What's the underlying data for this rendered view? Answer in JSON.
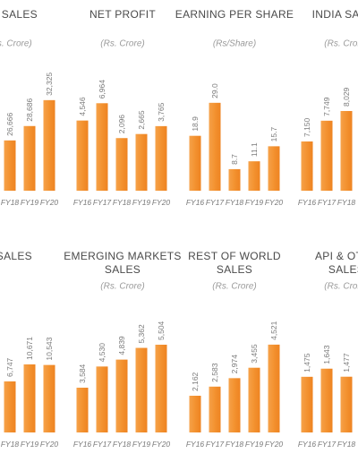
{
  "chart_data": [
    {
      "type": "bar",
      "title": [
        "SALES"
      ],
      "subtitle": "(Rs. Crore)",
      "categories": [
        "FY18",
        "FY19",
        "FY20"
      ],
      "values": [
        26666,
        28686,
        32325
      ],
      "value_labels": [
        "26,666",
        "28,686",
        "32,325"
      ],
      "ylim": [
        19600,
        32180
      ],
      "color": "#f39230"
    },
    {
      "type": "bar",
      "title": [
        "NET PROFIT"
      ],
      "subtitle": "(Rs. Crore)",
      "categories": [
        "FY16",
        "FY17",
        "FY18",
        "FY19",
        "FY20"
      ],
      "values": [
        4546,
        6964,
        2096,
        2665,
        3765
      ],
      "value_labels": [
        "4,546",
        "6,964",
        "2,096",
        "2,665",
        "3,765"
      ],
      "ylim": [
        -5250,
        7250
      ],
      "color": "#f39230"
    },
    {
      "type": "bar",
      "title": [
        "EARNING PER SHARE"
      ],
      "subtitle": "(Rs/Share)",
      "categories": [
        "FY16",
        "FY17",
        "FY18",
        "FY19",
        "FY20"
      ],
      "values": [
        18.9,
        29.0,
        8.7,
        11.1,
        15.7
      ],
      "value_labels": [
        "18.9",
        "29.0",
        "8.7",
        "11.1",
        "15.7"
      ],
      "ylim": [
        2.1,
        29.5
      ],
      "color": "#f39230"
    },
    {
      "type": "bar",
      "title": [
        "INDIA SALES"
      ],
      "subtitle": "(Rs. Crore)",
      "categories": [
        "FY16",
        "FY17",
        "FY18"
      ],
      "values": [
        7150,
        7749,
        8029
      ],
      "value_labels": [
        "7,150",
        "7,749",
        "8,029"
      ],
      "ylim": [
        5729,
        8313
      ],
      "color": "#f39230"
    },
    {
      "type": "bar",
      "title": [
        "S SALES"
      ],
      "categories": [
        "FY18",
        "FY19",
        "FY20"
      ],
      "values": [
        6747,
        10671,
        10543
      ],
      "value_labels": [
        "6,747",
        "10,671",
        "10,543"
      ],
      "ylim": [
        -5030,
        15630
      ],
      "color": "#f39230"
    },
    {
      "type": "bar",
      "title": [
        "EMERGING MARKETS",
        "SALES"
      ],
      "subtitle": "(Rs. Crore)",
      "categories": [
        "FY16",
        "FY17",
        "FY18",
        "FY19",
        "FY20"
      ],
      "values": [
        3584,
        4530,
        4839,
        5362,
        5504
      ],
      "value_labels": [
        "3,584",
        "4,530",
        "4,839",
        "5,362",
        "5,504"
      ],
      "ylim": [
        1584,
        5584
      ],
      "color": "#f39230"
    },
    {
      "type": "bar",
      "title": [
        "REST OF WORLD",
        "SALES"
      ],
      "subtitle": "(Rs. Crore)",
      "categories": [
        "FY16",
        "FY17",
        "FY18",
        "FY19",
        "FY20"
      ],
      "values": [
        2162,
        2583,
        2974,
        3455,
        4521
      ],
      "value_labels": [
        "2,162",
        "2,583",
        "2,974",
        "3,455",
        "4,521"
      ],
      "ylim": [
        468,
        4600
      ],
      "color": "#f39230"
    },
    {
      "type": "bar",
      "title": [
        "API & OT",
        "SALES"
      ],
      "subtitle": "(Rs. Crore)",
      "categories": [
        "FY16",
        "FY17",
        "FY18"
      ],
      "values": [
        1475,
        1643,
        1477
      ],
      "value_labels": [
        "1,475",
        "1,643",
        "1,477"
      ],
      "ylim": [
        325,
        2175
      ],
      "color": "#f39230"
    }
  ]
}
